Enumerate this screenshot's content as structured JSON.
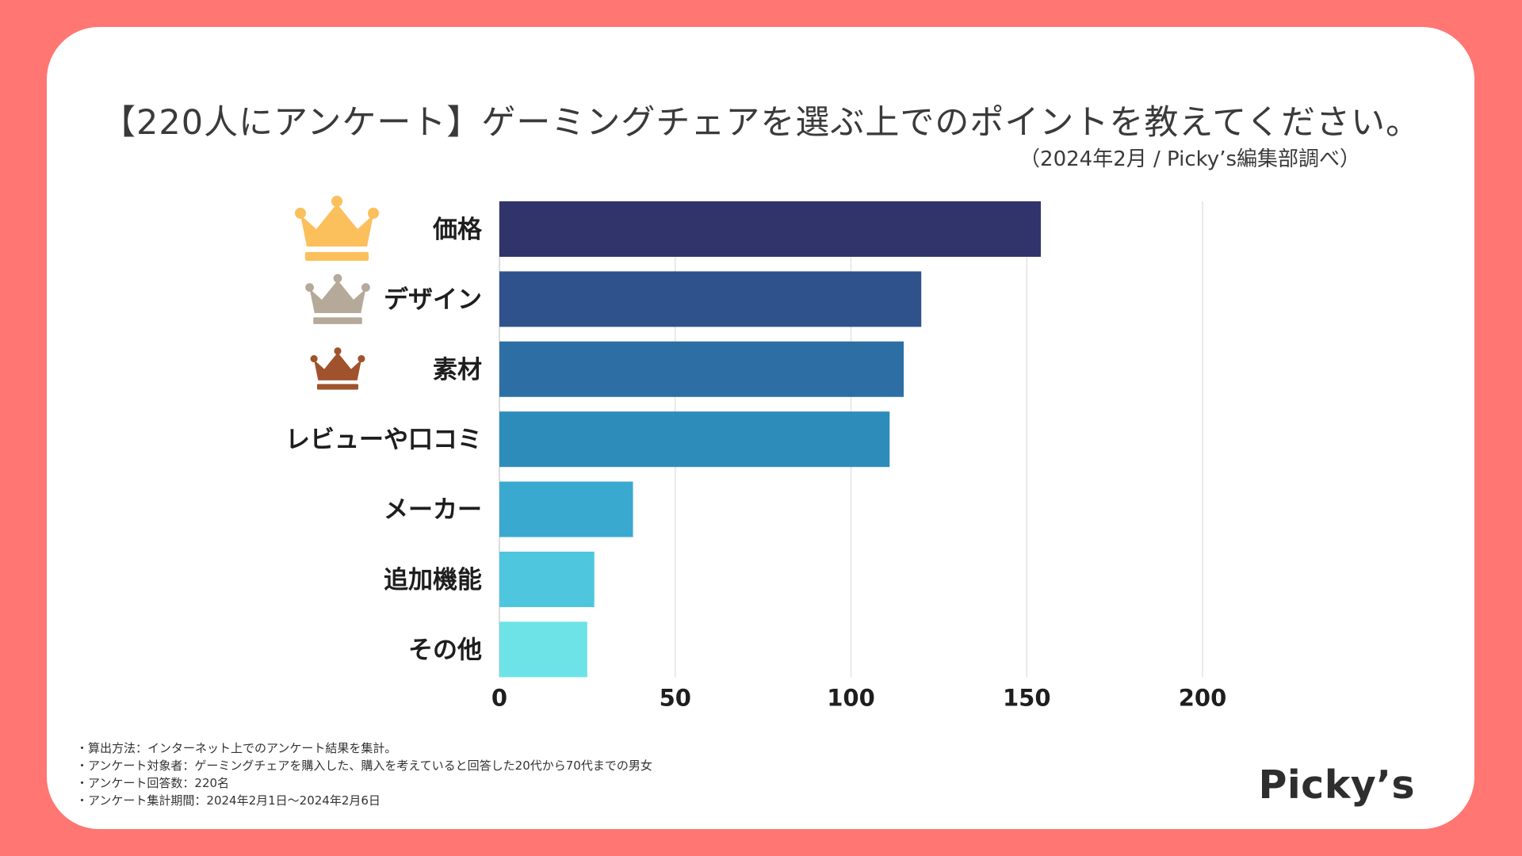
{
  "colors": {
    "background": "#ff7672",
    "card": "#ffffff",
    "grid": "#e3e3e3",
    "bars": [
      "#30346b",
      "#2f528c",
      "#2d6fa5",
      "#2e8cbb",
      "#3aa9cf",
      "#4ec7de",
      "#6de3e8"
    ],
    "crowns": {
      "gold": "#fbbf5c",
      "silver": "#b5a99a",
      "bronze": "#a0522d"
    }
  },
  "chart_data": {
    "type": "bar",
    "orientation": "horizontal",
    "title": "【220人にアンケート】ゲーミングチェアを選ぶ上でのポイントを教えてください。",
    "subtitle": "（2024年2月 / Picky’s編集部調べ）",
    "categories": [
      "価格",
      "デザイン",
      "素材",
      "レビューや口コミ",
      "メーカー",
      "追加機能",
      "その他"
    ],
    "values": [
      154,
      120,
      115,
      111,
      38,
      27,
      25
    ],
    "xlim": [
      0,
      200
    ],
    "xticks": [
      0,
      50,
      100,
      150,
      200
    ],
    "xtick_labels": [
      "0",
      "50",
      "100",
      "150",
      "200"
    ],
    "grid": true,
    "rank_icons": [
      "gold-crown",
      "silver-crown",
      "bronze-crown"
    ]
  },
  "footnotes": [
    "・算出方法：インターネット上でのアンケート結果を集計。",
    "・アンケート対象者：ゲーミングチェアを購入した、購入を考えていると回答した20代から70代までの男女",
    "・アンケート回答数：220名",
    "・アンケート集計期間：2024年2月1日〜2024年2月6日"
  ],
  "brand": {
    "logo_text": "Picky’s"
  }
}
